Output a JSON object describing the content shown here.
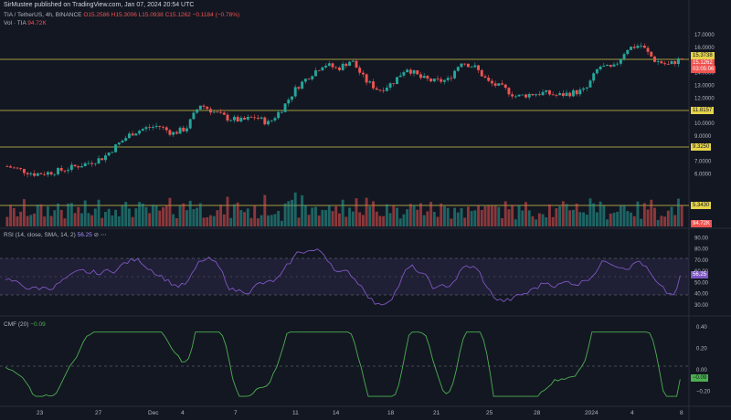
{
  "caption": "SirMustee published on TradingView.com, Jan 07, 2024 20:54 UTC",
  "legend": {
    "symbol": "TIA / TetherUS, 4h, BINANCE",
    "ohlc": "O15.2586 H15.3006 L15.0938 C15.1262 −0.1184 (−0.78%)",
    "vol_label": "Vol · TIA",
    "vol_value": "94.72K",
    "rsi_label": "RSI (14, close, SMA, 14, 2)",
    "rsi_value": "56.25",
    "cmf_label": "CMF (20)",
    "cmf_value": "−0.09"
  },
  "price_axis": [
    "17.0000",
    "16.0000",
    "14.0000",
    "13.0000",
    "12.0000",
    "11.0000",
    "10.0000",
    "9.0000",
    "8.0000",
    "7.0000",
    "6.0000"
  ],
  "price_tags": {
    "level1": "15.3738",
    "current": "15.1262",
    "countdown": "03:05:06",
    "level2": "11.8157",
    "level3": "9.3250",
    "level4": "5.3430",
    "volume": "94.72K"
  },
  "rsi_axis": [
    "90.00",
    "80.00",
    "70.00",
    "60.00",
    "50.00",
    "40.00",
    "30.00"
  ],
  "rsi_tag": "56.25",
  "cmf_axis": [
    "0.40",
    "0.20",
    "0.00",
    "−0.20"
  ],
  "cmf_tag": "−0.09",
  "x_axis": [
    "23",
    "27",
    "Dec",
    "4",
    "7",
    "11",
    "14",
    "18",
    "21",
    "25",
    "28",
    "2024",
    "4",
    "8"
  ],
  "colors": {
    "bg": "#131722",
    "up": "#26a69a",
    "down": "#ef5350",
    "level": "#d4c84a",
    "rsi": "#7e57c2",
    "cmf": "#4caf50"
  },
  "chart_data": {
    "type": "candlestick",
    "title": "TIA / TetherUS, 4h, BINANCE",
    "x_ticks": [
      "23",
      "27",
      "Dec",
      "4",
      "7",
      "11",
      "14",
      "18",
      "21",
      "25",
      "28",
      "2024",
      "4",
      "8"
    ],
    "price_range": [
      5.0,
      17.8
    ],
    "horizontal_levels": [
      15.3738,
      11.8157,
      9.325,
      5.343
    ],
    "close_path": [
      6.6,
      6.3,
      6.0,
      6.1,
      6.3,
      6.6,
      6.9,
      7.3,
      8.3,
      9.2,
      9.6,
      9.8,
      9.2,
      9.6,
      11.5,
      10.9,
      10.4,
      10.2,
      10.5,
      10.0,
      11.2,
      12.8,
      13.8,
      14.7,
      14.3,
      15.0,
      13.4,
      12.6,
      13.2,
      14.4,
      13.6,
      13.3,
      13.4,
      14.9,
      14.4,
      13.2,
      12.8,
      12.1,
      12.3,
      12.4,
      12.2,
      12.4,
      12.6,
      14.5,
      14.3,
      15.9,
      16.2,
      15.0,
      14.6,
      15.13
    ],
    "rsi_range": [
      25,
      92
    ],
    "rsi_current": 56.25,
    "cmf_range": [
      -0.3,
      0.45
    ],
    "cmf_current": -0.09
  }
}
